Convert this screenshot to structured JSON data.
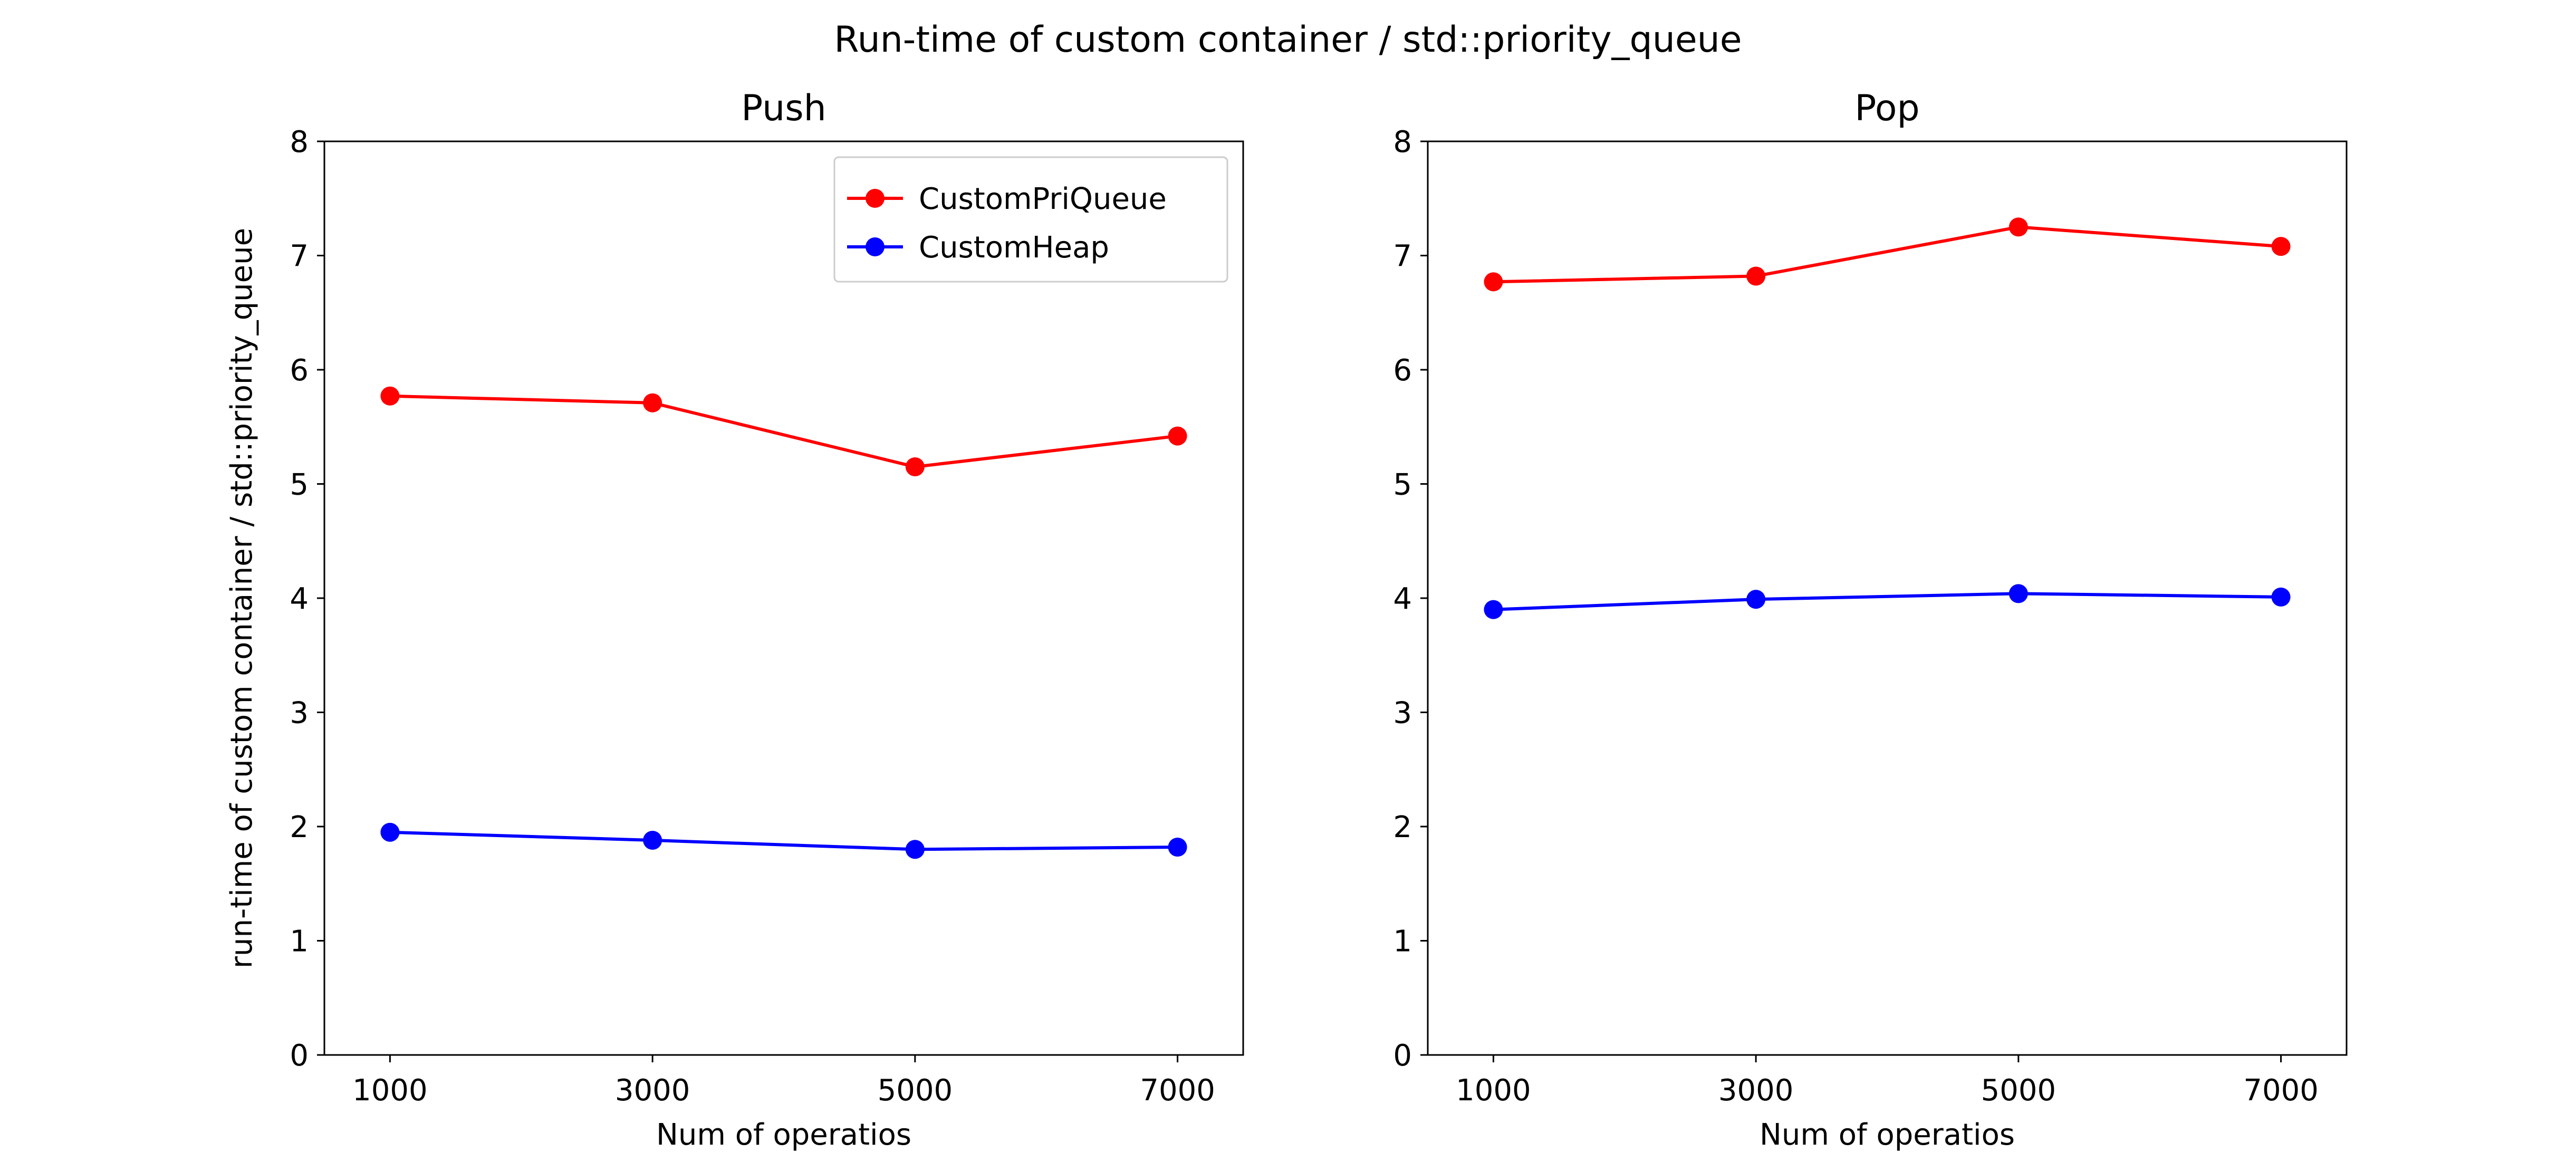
{
  "figure_title": "Run-time of custom container / std::priority_queue",
  "colors": {
    "CustomPriQueue": "#ff0000",
    "CustomHeap": "#0000ff"
  },
  "chart_data": [
    {
      "type": "line",
      "title": "Push",
      "xlabel": "Num of operatios",
      "ylabel": "run-time of custom container / std::priority_queue",
      "x": [
        1000,
        3000,
        5000,
        7000
      ],
      "xticks": [
        "1000",
        "3000",
        "5000",
        "7000"
      ],
      "xlim": [
        500,
        7500
      ],
      "ylim": [
        0,
        8
      ],
      "yticks": [
        "0",
        "1",
        "2",
        "3",
        "4",
        "5",
        "6",
        "7",
        "8"
      ],
      "grid": false,
      "legend": "upper right",
      "series": [
        {
          "name": "CustomPriQueue",
          "color": "#ff0000",
          "values": [
            5.77,
            5.71,
            5.15,
            5.42
          ]
        },
        {
          "name": "CustomHeap",
          "color": "#0000ff",
          "values": [
            1.95,
            1.88,
            1.8,
            1.82
          ]
        }
      ]
    },
    {
      "type": "line",
      "title": "Pop",
      "xlabel": "Num of operatios",
      "ylabel": "",
      "x": [
        1000,
        3000,
        5000,
        7000
      ],
      "xticks": [
        "1000",
        "3000",
        "5000",
        "7000"
      ],
      "xlim": [
        500,
        7500
      ],
      "ylim": [
        0,
        8
      ],
      "yticks": [
        "0",
        "1",
        "2",
        "3",
        "4",
        "5",
        "6",
        "7",
        "8"
      ],
      "grid": false,
      "legend": "none",
      "series": [
        {
          "name": "CustomPriQueue",
          "color": "#ff0000",
          "values": [
            6.77,
            6.82,
            7.25,
            7.08
          ]
        },
        {
          "name": "CustomHeap",
          "color": "#0000ff",
          "values": [
            3.9,
            3.99,
            4.04,
            4.01
          ]
        }
      ]
    }
  ]
}
